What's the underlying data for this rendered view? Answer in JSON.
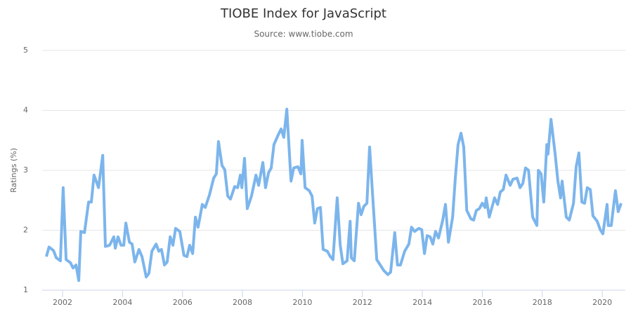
{
  "chart_data": {
    "type": "line",
    "title": "TIOBE Index for JavaScript",
    "subtitle": "Source: www.tiobe.com",
    "y_label": "Ratings (%)",
    "series": [
      {
        "color": "#7cb5ec",
        "x": [
          2001.46,
          2001.55,
          2001.7,
          2001.79,
          2001.93,
          2002.02,
          2002.12,
          2002.26,
          2002.35,
          2002.45,
          2002.54,
          2002.61,
          2002.73,
          2002.87,
          2002.96,
          2003.05,
          2003.2,
          2003.34,
          2003.43,
          2003.57,
          2003.71,
          2003.76,
          2003.85,
          2003.95,
          2004.04,
          2004.11,
          2004.23,
          2004.32,
          2004.41,
          2004.55,
          2004.65,
          2004.79,
          2004.88,
          2004.98,
          2005.12,
          2005.21,
          2005.3,
          2005.4,
          2005.49,
          2005.59,
          2005.68,
          2005.77,
          2005.91,
          2006.05,
          2006.15,
          2006.24,
          2006.34,
          2006.43,
          2006.52,
          2006.66,
          2006.76,
          2006.9,
          2007.04,
          2007.13,
          2007.2,
          2007.32,
          2007.41,
          2007.51,
          2007.6,
          2007.74,
          2007.84,
          2007.93,
          2007.98,
          2008.07,
          2008.16,
          2008.3,
          2008.45,
          2008.54,
          2008.68,
          2008.77,
          2008.87,
          2008.96,
          2009.05,
          2009.2,
          2009.29,
          2009.38,
          2009.48,
          2009.62,
          2009.71,
          2009.85,
          2009.95,
          2009.99,
          2010.09,
          2010.23,
          2010.32,
          2010.41,
          2010.5,
          2010.6,
          2010.69,
          2010.83,
          2010.93,
          2011.02,
          2011.16,
          2011.26,
          2011.35,
          2011.49,
          2011.59,
          2011.63,
          2011.73,
          2011.87,
          2011.96,
          2012.05,
          2012.15,
          2012.24,
          2012.33,
          2012.48,
          2012.57,
          2012.71,
          2012.85,
          2012.94,
          2013.08,
          2013.17,
          2013.27,
          2013.41,
          2013.55,
          2013.64,
          2013.74,
          2013.88,
          2013.98,
          2014.07,
          2014.16,
          2014.26,
          2014.35,
          2014.44,
          2014.54,
          2014.68,
          2014.77,
          2014.87,
          2015.01,
          2015.1,
          2015.19,
          2015.29,
          2015.38,
          2015.48,
          2015.62,
          2015.71,
          2015.8,
          2015.9,
          2016.0,
          2016.09,
          2016.13,
          2016.23,
          2016.32,
          2016.41,
          2016.51,
          2016.6,
          2016.7,
          2016.79,
          2016.93,
          2017.02,
          2017.16,
          2017.26,
          2017.35,
          2017.44,
          2017.54,
          2017.68,
          2017.82,
          2017.87,
          2017.96,
          2018.05,
          2018.15,
          2018.19,
          2018.29,
          2018.43,
          2018.52,
          2018.61,
          2018.66,
          2018.8,
          2018.9,
          2019.04,
          2019.13,
          2019.22,
          2019.32,
          2019.41,
          2019.5,
          2019.6,
          2019.69,
          2019.83,
          2019.93,
          2020.02,
          2020.16,
          2020.2,
          2020.3,
          2020.44,
          2020.53,
          2020.63
        ],
        "values": [
          1.56,
          1.72,
          1.66,
          1.54,
          1.49,
          2.71,
          1.51,
          1.46,
          1.37,
          1.42,
          1.16,
          1.98,
          1.96,
          2.47,
          2.47,
          2.92,
          2.71,
          3.25,
          1.73,
          1.75,
          1.89,
          1.7,
          1.89,
          1.75,
          1.75,
          2.12,
          1.8,
          1.77,
          1.47,
          1.68,
          1.56,
          1.22,
          1.28,
          1.65,
          1.77,
          1.65,
          1.68,
          1.42,
          1.47,
          1.89,
          1.75,
          2.03,
          1.98,
          1.58,
          1.56,
          1.75,
          1.61,
          2.22,
          2.05,
          2.43,
          2.38,
          2.59,
          2.87,
          2.94,
          3.48,
          3.08,
          3.01,
          2.57,
          2.52,
          2.73,
          2.71,
          2.92,
          2.71,
          3.2,
          2.36,
          2.57,
          2.92,
          2.75,
          3.13,
          2.71,
          2.96,
          3.04,
          3.43,
          3.6,
          3.69,
          3.55,
          4.02,
          2.82,
          3.04,
          3.06,
          2.94,
          3.5,
          2.71,
          2.66,
          2.57,
          2.12,
          2.36,
          2.38,
          1.68,
          1.65,
          1.56,
          1.51,
          2.54,
          1.75,
          1.44,
          1.49,
          2.15,
          1.54,
          1.49,
          2.45,
          2.26,
          2.4,
          2.45,
          3.39,
          2.68,
          1.51,
          1.44,
          1.33,
          1.26,
          1.3,
          1.96,
          1.42,
          1.42,
          1.65,
          1.77,
          2.05,
          1.98,
          2.03,
          2.01,
          1.61,
          1.91,
          1.89,
          1.77,
          1.98,
          1.87,
          2.17,
          2.43,
          1.8,
          2.22,
          2.87,
          3.43,
          3.62,
          3.39,
          2.33,
          2.19,
          2.17,
          2.33,
          2.36,
          2.45,
          2.38,
          2.54,
          2.22,
          2.38,
          2.54,
          2.43,
          2.64,
          2.68,
          2.92,
          2.75,
          2.85,
          2.87,
          2.71,
          2.78,
          3.04,
          3.0,
          2.22,
          2.08,
          3.0,
          2.94,
          2.47,
          3.43,
          3.27,
          3.85,
          3.27,
          2.82,
          2.54,
          2.82,
          2.22,
          2.17,
          2.45,
          3.06,
          3.29,
          2.47,
          2.45,
          2.71,
          2.68,
          2.24,
          2.15,
          2.01,
          1.94,
          2.43,
          2.08,
          2.08,
          2.66,
          2.31,
          2.45
        ]
      }
    ],
    "xlim": [
      2001.32,
      2020.77
    ],
    "xticks": [
      2002,
      2004,
      2006,
      2008,
      2010,
      2012,
      2014,
      2016,
      2018,
      2020
    ],
    "ylim": [
      1,
      5
    ],
    "yticks": [
      1,
      2,
      3,
      4,
      5
    ],
    "grid": true
  }
}
